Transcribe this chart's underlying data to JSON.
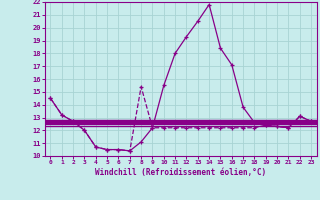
{
  "x": [
    0,
    1,
    2,
    3,
    4,
    5,
    6,
    7,
    8,
    9,
    10,
    11,
    12,
    13,
    14,
    15,
    16,
    17,
    18,
    19,
    20,
    21,
    22,
    23
  ],
  "temp": [
    14.5,
    13.2,
    12.7,
    12.0,
    10.7,
    10.5,
    10.5,
    10.4,
    11.1,
    12.2,
    15.5,
    18.0,
    19.3,
    20.5,
    21.8,
    18.4,
    17.1,
    13.8,
    12.6,
    12.4,
    12.3,
    12.2,
    13.1,
    12.7
  ],
  "windchill": [
    14.5,
    13.2,
    12.7,
    12.0,
    10.7,
    10.5,
    10.5,
    10.4,
    15.4,
    12.2,
    12.2,
    12.2,
    12.2,
    12.2,
    12.2,
    12.2,
    12.2,
    12.2,
    12.2,
    12.4,
    12.3,
    12.2,
    13.1,
    12.7
  ],
  "hline1": 12.7,
  "hline2": 12.5,
  "hline3": 12.3,
  "line_color": "#880088",
  "bg_color": "#c8ecec",
  "grid_color": "#a8d4d4",
  "xlabel": "Windchill (Refroidissement éolien,°C)",
  "ylim": [
    10,
    22
  ],
  "xlim": [
    -0.5,
    23.5
  ],
  "yticks": [
    10,
    11,
    12,
    13,
    14,
    15,
    16,
    17,
    18,
    19,
    20,
    21,
    22
  ],
  "xticks": [
    0,
    1,
    2,
    3,
    4,
    5,
    6,
    7,
    8,
    9,
    10,
    11,
    12,
    13,
    14,
    15,
    16,
    17,
    18,
    19,
    20,
    21,
    22,
    23
  ]
}
